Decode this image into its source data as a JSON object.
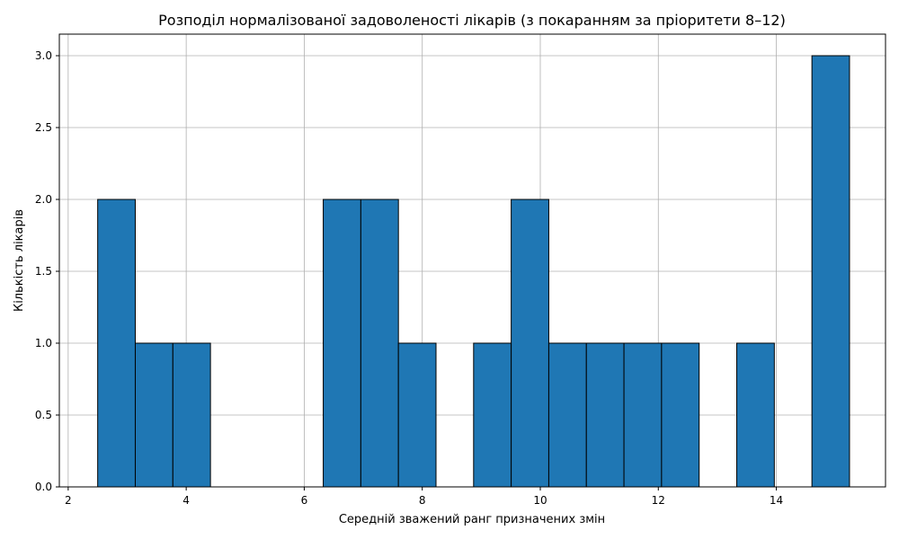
{
  "chart_data": {
    "type": "bar",
    "subtype": "histogram",
    "title": "Розподіл нормалізованої задоволеності лікарів (з покаранням за пріоритети 8–12)",
    "xlabel": "Середній зважений ранг призначених змін",
    "ylabel": "Кількість лікарів",
    "xlim": [
      1.85,
      15.85
    ],
    "ylim": [
      0,
      3.15
    ],
    "x_ticks": [
      "2",
      "4",
      "6",
      "8",
      "10",
      "12",
      "14"
    ],
    "x_tick_values": [
      2,
      4,
      6,
      8,
      10,
      12,
      14
    ],
    "y_ticks": [
      "0.0",
      "0.5",
      "1.0",
      "1.5",
      "2.0",
      "2.5",
      "3.0"
    ],
    "y_tick_values": [
      0,
      0.5,
      1.0,
      1.5,
      2.0,
      2.5,
      3.0
    ],
    "bin_edges": [
      2.5,
      3.137,
      3.774,
      4.411,
      5.048,
      5.685,
      6.322,
      6.959,
      7.596,
      8.233,
      8.87,
      9.507,
      10.144,
      10.781,
      11.418,
      12.055,
      12.692,
      13.329,
      13.966,
      14.603,
      15.24
    ],
    "values": [
      2,
      1,
      1,
      0,
      0,
      0,
      2,
      2,
      1,
      0,
      1,
      2,
      1,
      1,
      1,
      1,
      0,
      1,
      0,
      3
    ],
    "bar_color": "#1f77b4",
    "edge_color": "#000000",
    "grid": true
  }
}
